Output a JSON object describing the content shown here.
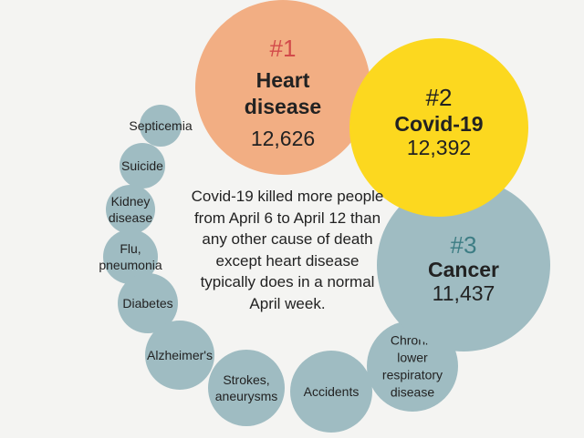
{
  "note": "Covid-19 killed more people from April 6 to April 12 than any other cause of death except heart disease typically does in a normal April week.",
  "colors": {
    "heart": "#f2ae83",
    "covid": "#fcd81f",
    "cancer": "#9fbcc2",
    "other": "#9fbcc2",
    "rank_heart": "#d24a4a",
    "rank_cancer": "#3d7d84",
    "rank_covid": "#222222",
    "text": "#222222"
  },
  "chart_data": {
    "type": "bubble",
    "title": "",
    "unit": "",
    "top": [
      {
        "rank": "#1",
        "name": "Heart disease",
        "lines": [
          "Heart",
          "disease"
        ],
        "value": "12,626",
        "value_num": 12626,
        "color": "heart"
      },
      {
        "rank": "#2",
        "name": "Covid-19",
        "lines": [
          "Covid-19"
        ],
        "value": "12,392",
        "value_num": 12392,
        "color": "covid"
      },
      {
        "rank": "#3",
        "name": "Cancer",
        "lines": [
          "Cancer"
        ],
        "value": "11,437",
        "value_num": 11437,
        "color": "cancer"
      }
    ],
    "others": [
      {
        "name": "Septicemia",
        "lines": [
          "Septicemia"
        ]
      },
      {
        "name": "Suicide",
        "lines": [
          "Suicide"
        ]
      },
      {
        "name": "Kidney disease",
        "lines": [
          "Kidney",
          "disease"
        ]
      },
      {
        "name": "Flu, pneumonia",
        "lines": [
          "Flu,",
          "pneumonia"
        ]
      },
      {
        "name": "Diabetes",
        "lines": [
          "Diabetes"
        ]
      },
      {
        "name": "Alzheimer's",
        "lines": [
          "Alzheimer's"
        ]
      },
      {
        "name": "Strokes, aneurysms",
        "lines": [
          "Strokes,",
          "aneurysms"
        ]
      },
      {
        "name": "Accidents",
        "lines": [
          "Accidents"
        ]
      },
      {
        "name": "Chronic lower respiratory disease",
        "lines": [
          "Chronic",
          "lower",
          "respiratory",
          "disease"
        ]
      }
    ]
  }
}
